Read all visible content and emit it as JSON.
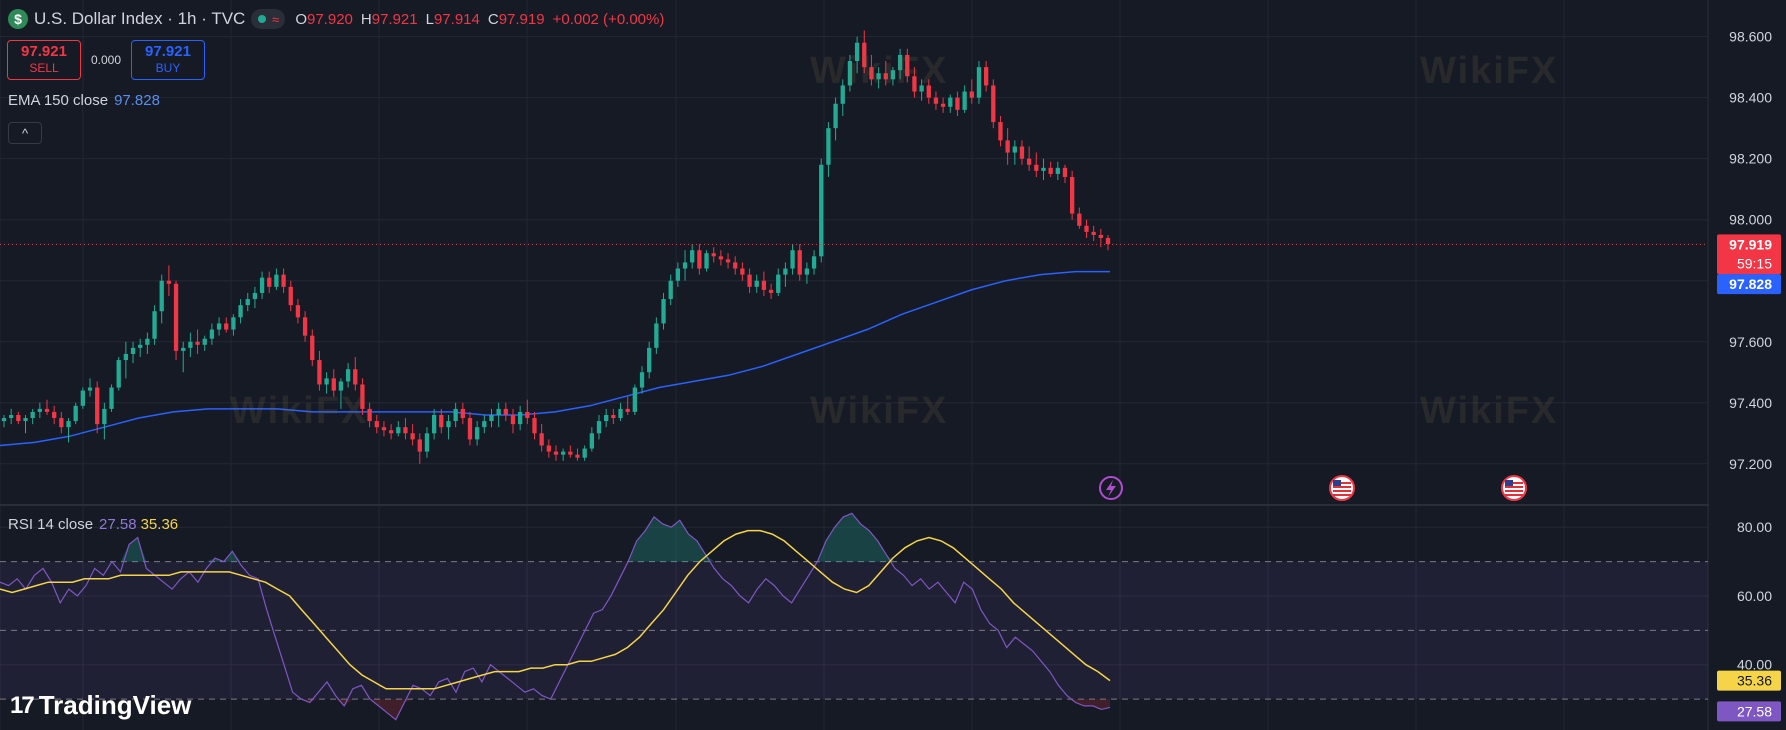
{
  "header": {
    "symbol_icon": "$",
    "title": "U.S. Dollar Index · 1h · TVC",
    "wave_icon": "≈",
    "ohlc": [
      {
        "k": "O",
        "v": "97.920"
      },
      {
        "k": "H",
        "v": "97.921"
      },
      {
        "k": "L",
        "v": "97.914"
      },
      {
        "k": "C",
        "v": "97.919"
      }
    ],
    "change": "+0.002 (+0.00%)"
  },
  "trade": {
    "sell_price": "97.921",
    "sell_label": "SELL",
    "spread": "0.000",
    "buy_price": "97.921",
    "buy_label": "BUY"
  },
  "ema": {
    "label": "EMA 150 close",
    "value": "97.828"
  },
  "collapse_icon": "^",
  "rsi": {
    "label": "RSI 14 close",
    "value": "27.58",
    "ma_value": "35.36"
  },
  "brand": {
    "logo": "17",
    "name": "TradingView"
  },
  "watermark": "WikiFX",
  "chart_data": [
    {
      "type": "candlestick",
      "title": "U.S. Dollar Index · 1h · TVC",
      "y_ticks": [
        "98.600",
        "98.400",
        "98.200",
        "98.000",
        "97.600",
        "97.400",
        "97.200"
      ],
      "ylim": [
        97.065,
        98.72
      ],
      "last_price": {
        "value": "97.919",
        "countdown": "59:15"
      },
      "ema_label": "97.828",
      "colors": {
        "up": "#22ab94",
        "down": "#f23645",
        "ema": "#2962ff",
        "background": "#161a25"
      },
      "candles": [
        [
          97.34,
          97.36,
          97.32,
          97.35
        ],
        [
          97.35,
          97.38,
          97.33,
          97.36
        ],
        [
          97.36,
          97.37,
          97.33,
          97.34
        ],
        [
          97.34,
          97.36,
          97.3,
          97.35
        ],
        [
          97.35,
          97.38,
          97.33,
          97.37
        ],
        [
          97.37,
          97.4,
          97.35,
          97.38
        ],
        [
          97.38,
          97.41,
          97.36,
          97.37
        ],
        [
          97.37,
          97.39,
          97.33,
          97.35
        ],
        [
          97.35,
          97.37,
          97.3,
          97.32
        ],
        [
          97.32,
          97.35,
          97.27,
          97.34
        ],
        [
          97.34,
          97.4,
          97.33,
          97.39
        ],
        [
          97.39,
          97.45,
          97.38,
          97.44
        ],
        [
          97.44,
          97.48,
          97.42,
          97.45
        ],
        [
          97.45,
          97.47,
          97.3,
          97.33
        ],
        [
          97.33,
          97.4,
          97.28,
          97.38
        ],
        [
          97.38,
          97.46,
          97.37,
          97.45
        ],
        [
          97.45,
          97.55,
          97.44,
          97.54
        ],
        [
          97.54,
          97.6,
          97.48,
          97.56
        ],
        [
          97.56,
          97.6,
          97.53,
          97.58
        ],
        [
          97.58,
          97.61,
          97.55,
          97.59
        ],
        [
          97.59,
          97.63,
          97.56,
          97.61
        ],
        [
          97.61,
          97.72,
          97.59,
          97.7
        ],
        [
          97.7,
          97.82,
          97.66,
          97.8
        ],
        [
          97.8,
          97.85,
          97.75,
          97.79
        ],
        [
          97.79,
          97.8,
          97.54,
          97.57
        ],
        [
          97.57,
          97.6,
          97.5,
          97.58
        ],
        [
          97.58,
          97.63,
          97.55,
          97.6
        ],
        [
          97.6,
          97.64,
          97.56,
          97.59
        ],
        [
          97.59,
          97.62,
          97.57,
          97.61
        ],
        [
          97.61,
          97.66,
          97.59,
          97.64
        ],
        [
          97.64,
          97.68,
          97.62,
          97.66
        ],
        [
          97.66,
          97.68,
          97.63,
          97.64
        ],
        [
          97.64,
          97.69,
          97.62,
          97.68
        ],
        [
          97.68,
          97.74,
          97.66,
          97.72
        ],
        [
          97.72,
          97.76,
          97.7,
          97.74
        ],
        [
          97.74,
          97.78,
          97.71,
          97.76
        ],
        [
          97.76,
          97.83,
          97.74,
          97.81
        ],
        [
          97.81,
          97.83,
          97.76,
          97.78
        ],
        [
          97.78,
          97.84,
          97.77,
          97.82
        ],
        [
          97.82,
          97.84,
          97.76,
          97.78
        ],
        [
          97.78,
          97.8,
          97.7,
          97.72
        ],
        [
          97.72,
          97.74,
          97.66,
          97.68
        ],
        [
          97.68,
          97.7,
          97.6,
          97.62
        ],
        [
          97.62,
          97.64,
          97.52,
          97.54
        ],
        [
          97.54,
          97.57,
          97.44,
          97.46
        ],
        [
          97.46,
          97.5,
          97.43,
          97.48
        ],
        [
          97.48,
          97.51,
          97.42,
          97.44
        ],
        [
          97.44,
          97.48,
          97.38,
          97.47
        ],
        [
          97.47,
          97.53,
          97.45,
          97.51
        ],
        [
          97.51,
          97.55,
          97.44,
          97.46
        ],
        [
          97.46,
          97.48,
          97.36,
          97.38
        ],
        [
          97.38,
          97.4,
          97.32,
          97.34
        ],
        [
          97.34,
          97.36,
          97.3,
          97.32
        ],
        [
          97.32,
          97.34,
          97.29,
          97.31
        ],
        [
          97.31,
          97.33,
          97.28,
          97.3
        ],
        [
          97.3,
          97.34,
          97.29,
          97.32
        ],
        [
          97.32,
          97.35,
          97.28,
          97.3
        ],
        [
          97.3,
          97.33,
          97.26,
          97.28
        ],
        [
          97.28,
          97.3,
          97.2,
          97.24
        ],
        [
          97.24,
          97.32,
          97.22,
          97.3
        ],
        [
          97.3,
          97.38,
          97.28,
          97.36
        ],
        [
          97.36,
          97.38,
          97.3,
          97.32
        ],
        [
          97.32,
          97.36,
          97.28,
          97.34
        ],
        [
          97.34,
          97.4,
          97.32,
          97.38
        ],
        [
          97.38,
          97.4,
          97.33,
          97.35
        ],
        [
          97.35,
          97.37,
          97.26,
          97.28
        ],
        [
          97.28,
          97.34,
          97.26,
          97.32
        ],
        [
          97.32,
          97.36,
          97.3,
          97.34
        ],
        [
          97.34,
          97.38,
          97.32,
          97.36
        ],
        [
          97.36,
          97.4,
          97.32,
          97.38
        ],
        [
          97.38,
          97.4,
          97.34,
          97.36
        ],
        [
          97.36,
          97.38,
          97.3,
          97.33
        ],
        [
          97.33,
          97.39,
          97.31,
          97.37
        ],
        [
          97.37,
          97.41,
          97.33,
          97.35
        ],
        [
          97.35,
          97.37,
          97.28,
          97.3
        ],
        [
          97.3,
          97.33,
          97.24,
          97.26
        ],
        [
          97.26,
          97.28,
          97.22,
          97.24
        ],
        [
          97.24,
          97.26,
          97.21,
          97.23
        ],
        [
          97.23,
          97.25,
          97.21,
          97.24
        ],
        [
          97.24,
          97.26,
          97.22,
          97.23
        ],
        [
          97.23,
          97.25,
          97.21,
          97.22
        ],
        [
          97.22,
          97.26,
          97.21,
          97.25
        ],
        [
          97.25,
          97.32,
          97.24,
          97.3
        ],
        [
          97.3,
          97.36,
          97.28,
          97.34
        ],
        [
          97.34,
          97.38,
          97.32,
          97.36
        ],
        [
          97.36,
          97.38,
          97.33,
          97.35
        ],
        [
          97.35,
          97.4,
          97.34,
          97.38
        ],
        [
          97.38,
          97.42,
          97.36,
          97.37
        ],
        [
          97.37,
          97.46,
          97.36,
          97.45
        ],
        [
          97.45,
          97.52,
          97.43,
          97.5
        ],
        [
          97.5,
          97.6,
          97.48,
          97.58
        ],
        [
          97.58,
          97.68,
          97.56,
          97.66
        ],
        [
          97.66,
          97.76,
          97.64,
          97.74
        ],
        [
          97.74,
          97.82,
          97.72,
          97.8
        ],
        [
          97.8,
          97.86,
          97.78,
          97.84
        ],
        [
          97.84,
          97.9,
          97.8,
          97.86
        ],
        [
          97.86,
          97.92,
          97.84,
          97.9
        ],
        [
          97.9,
          97.92,
          97.82,
          97.84
        ],
        [
          97.84,
          97.9,
          97.83,
          97.89
        ],
        [
          97.89,
          97.91,
          97.86,
          97.88
        ],
        [
          97.88,
          97.9,
          97.85,
          97.87
        ],
        [
          97.87,
          97.89,
          97.84,
          97.86
        ],
        [
          97.86,
          97.88,
          97.82,
          97.84
        ],
        [
          97.84,
          97.86,
          97.8,
          97.82
        ],
        [
          97.82,
          97.84,
          97.76,
          97.78
        ],
        [
          97.78,
          97.82,
          97.76,
          97.8
        ],
        [
          97.8,
          97.83,
          97.75,
          97.77
        ],
        [
          97.77,
          97.79,
          97.74,
          97.76
        ],
        [
          97.76,
          97.84,
          97.75,
          97.82
        ],
        [
          97.82,
          97.86,
          97.78,
          97.84
        ],
        [
          97.84,
          97.92,
          97.82,
          97.9
        ],
        [
          97.9,
          97.92,
          97.8,
          97.82
        ],
        [
          97.82,
          97.86,
          97.79,
          97.84
        ],
        [
          97.84,
          97.9,
          97.82,
          97.88
        ],
        [
          97.88,
          98.2,
          97.86,
          98.18
        ],
        [
          98.18,
          98.32,
          98.14,
          98.3
        ],
        [
          98.3,
          98.4,
          98.26,
          98.38
        ],
        [
          98.38,
          98.46,
          98.34,
          98.44
        ],
        [
          98.44,
          98.54,
          98.42,
          98.52
        ],
        [
          98.52,
          98.6,
          98.48,
          98.58
        ],
        [
          98.58,
          98.62,
          98.48,
          98.5
        ],
        [
          98.5,
          98.54,
          98.44,
          98.46
        ],
        [
          98.46,
          98.5,
          98.43,
          98.48
        ],
        [
          98.48,
          98.52,
          98.44,
          98.46
        ],
        [
          98.46,
          98.5,
          98.44,
          98.49
        ],
        [
          98.49,
          98.56,
          98.46,
          98.54
        ],
        [
          98.54,
          98.56,
          98.45,
          98.47
        ],
        [
          98.47,
          98.5,
          98.4,
          98.42
        ],
        [
          98.42,
          98.46,
          98.39,
          98.44
        ],
        [
          98.44,
          98.46,
          98.38,
          98.4
        ],
        [
          98.4,
          98.42,
          98.36,
          98.38
        ],
        [
          98.38,
          98.4,
          98.35,
          98.37
        ],
        [
          98.37,
          98.41,
          98.35,
          98.4
        ],
        [
          98.4,
          98.42,
          98.34,
          98.36
        ],
        [
          98.36,
          98.44,
          98.35,
          98.42
        ],
        [
          98.42,
          98.46,
          98.38,
          98.4
        ],
        [
          98.4,
          98.52,
          98.38,
          98.5
        ],
        [
          98.5,
          98.52,
          98.42,
          98.44
        ],
        [
          98.44,
          98.46,
          98.3,
          98.32
        ],
        [
          98.32,
          98.34,
          98.24,
          98.26
        ],
        [
          98.26,
          98.3,
          98.18,
          98.22
        ],
        [
          98.22,
          98.26,
          98.18,
          98.24
        ],
        [
          98.24,
          98.26,
          98.18,
          98.2
        ],
        [
          98.2,
          98.24,
          98.16,
          98.18
        ],
        [
          98.18,
          98.22,
          98.14,
          98.16
        ],
        [
          98.16,
          98.2,
          98.13,
          98.17
        ],
        [
          98.17,
          98.19,
          98.14,
          98.15
        ],
        [
          98.15,
          98.19,
          98.13,
          98.17
        ],
        [
          98.17,
          98.18,
          98.12,
          98.14
        ],
        [
          98.14,
          98.16,
          98.0,
          98.02
        ],
        [
          98.02,
          98.04,
          97.97,
          97.98
        ],
        [
          97.98,
          98.0,
          97.94,
          97.96
        ],
        [
          97.96,
          97.98,
          97.93,
          97.95
        ],
        [
          97.95,
          97.97,
          97.91,
          97.94
        ],
        [
          97.94,
          97.95,
          97.9,
          97.92
        ]
      ],
      "ema150_sample": [
        97.26,
        97.27,
        97.29,
        97.32,
        97.35,
        97.37,
        97.38,
        97.38,
        97.38,
        97.37,
        97.37,
        97.37,
        97.37,
        97.37,
        97.36,
        97.36,
        97.37,
        97.39,
        97.42,
        97.45,
        97.47,
        97.49,
        97.52,
        97.56,
        97.6,
        97.64,
        97.69,
        97.73,
        97.77,
        97.8,
        97.82,
        97.83,
        97.83
      ]
    },
    {
      "type": "line",
      "title": "RSI 14 close",
      "y_ticks": [
        "80.00",
        "60.00",
        "40.00"
      ],
      "ylim": [
        21,
        85
      ],
      "bands": {
        "upper": 70,
        "middle": 50,
        "lower": 30
      },
      "series": [
        {
          "name": "RSI 14 close",
          "color": "#7e57c2",
          "last": "27.58",
          "values": [
            64,
            63,
            65,
            62,
            66,
            68,
            64,
            58,
            62,
            60,
            63,
            68,
            66,
            70,
            67,
            75,
            77,
            68,
            66,
            64,
            62,
            65,
            67,
            64,
            68,
            71,
            70,
            73,
            69,
            66,
            65,
            56,
            48,
            40,
            32,
            30,
            29,
            32,
            35,
            31,
            28,
            33,
            34,
            30,
            28,
            26,
            24,
            29,
            34,
            33,
            31,
            35,
            36,
            32,
            38,
            39,
            35,
            40,
            38,
            36,
            34,
            32,
            33,
            31,
            30,
            35,
            40,
            45,
            50,
            55,
            56,
            60,
            65,
            70,
            76,
            79,
            83,
            81,
            80,
            82,
            78,
            76,
            72,
            68,
            65,
            63,
            60,
            58,
            62,
            65,
            63,
            60,
            58,
            62,
            66,
            70,
            76,
            80,
            83,
            84,
            81,
            79,
            76,
            72,
            68,
            66,
            63,
            65,
            62,
            64,
            61,
            58,
            64,
            62,
            56,
            52,
            50,
            45,
            48,
            46,
            44,
            41,
            38,
            34,
            31,
            29,
            28,
            28,
            27,
            27.58
          ]
        },
        {
          "name": "RSI MA",
          "color": "#f5d547",
          "last": "35.36",
          "values": [
            62,
            61,
            62,
            63,
            64,
            64,
            64,
            65,
            65,
            65,
            66,
            66,
            66,
            66,
            66,
            67,
            67,
            67,
            67,
            67,
            66,
            65,
            64,
            62,
            60,
            56,
            52,
            48,
            44,
            40,
            37,
            35,
            33,
            33,
            33,
            33,
            33,
            34,
            35,
            36,
            37,
            38,
            38,
            38,
            39,
            39,
            40,
            40,
            41,
            41,
            42,
            43,
            45,
            48,
            52,
            56,
            61,
            66,
            70,
            73,
            76,
            78,
            79,
            79,
            78,
            76,
            73,
            70,
            67,
            64,
            62,
            61,
            63,
            67,
            71,
            74,
            76,
            77,
            76,
            74,
            71,
            68,
            65,
            62,
            58,
            55,
            52,
            49,
            46,
            43,
            40,
            38,
            35.36
          ]
        }
      ]
    }
  ]
}
